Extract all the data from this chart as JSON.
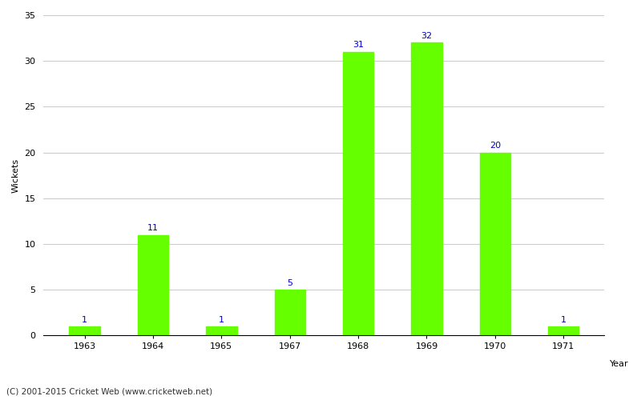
{
  "categories": [
    "1963",
    "1964",
    "1965",
    "1967",
    "1968",
    "1969",
    "1970",
    "1971"
  ],
  "values": [
    1,
    11,
    1,
    5,
    31,
    32,
    20,
    1
  ],
  "bar_color": "#66ff00",
  "bar_edge_color": "#66ff00",
  "label_color": "#0000cc",
  "xlabel": "Year",
  "ylabel": "Wickets",
  "ylim": [
    0,
    35
  ],
  "yticks": [
    0,
    5,
    10,
    15,
    20,
    25,
    30,
    35
  ],
  "background_color": "#ffffff",
  "grid_color": "#cccccc",
  "label_fontsize": 8,
  "axis_fontsize": 8,
  "bar_width": 0.45,
  "footer": "(C) 2001-2015 Cricket Web (www.cricketweb.net)"
}
